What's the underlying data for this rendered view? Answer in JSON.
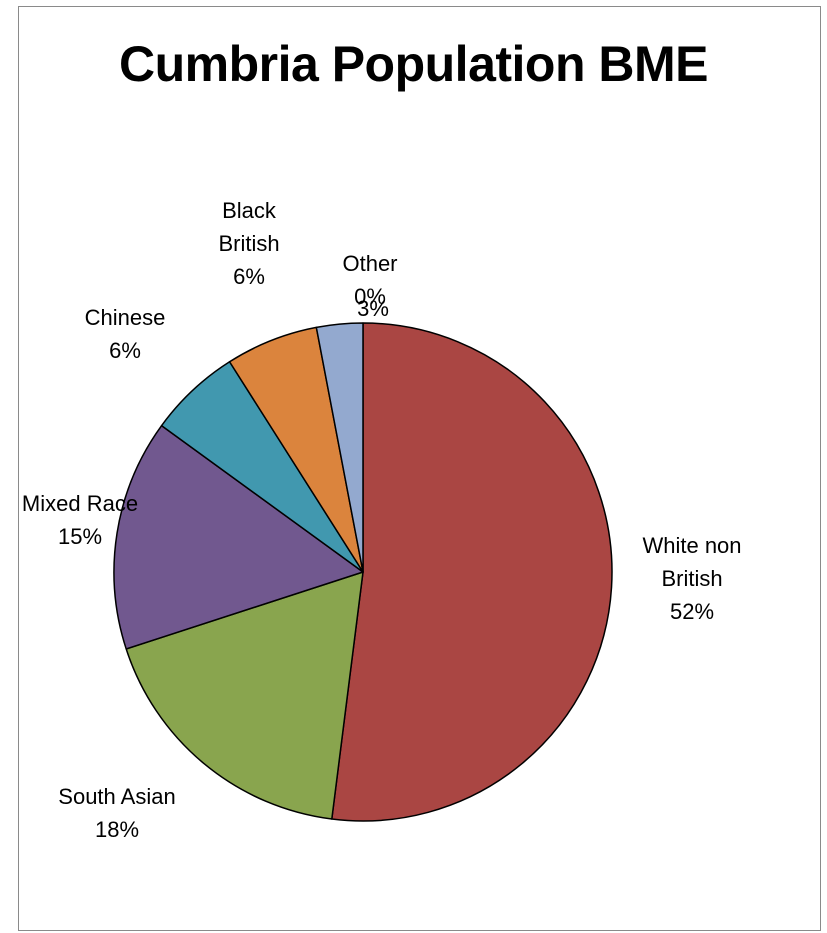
{
  "chart_data": {
    "type": "pie",
    "title": "Cumbria Population BME",
    "slices": [
      {
        "label_lines": [
          "White non",
          "British",
          "52%"
        ],
        "value": 52,
        "color": "#AA4643"
      },
      {
        "label_lines": [
          "South Asian",
          "18%"
        ],
        "value": 18,
        "color": "#89A54E"
      },
      {
        "label_lines": [
          "Mixed Race",
          "15%"
        ],
        "value": 15,
        "color": "#71588F"
      },
      {
        "label_lines": [
          "Chinese",
          "6%"
        ],
        "value": 6,
        "color": "#4198AF"
      },
      {
        "label_lines": [
          "Black",
          "British",
          "6%"
        ],
        "value": 6,
        "color": "#DB843D"
      },
      {
        "label_lines": [
          "3%"
        ],
        "value": 3,
        "color": "#93A9CF"
      },
      {
        "label_lines": [
          "Other",
          "0%"
        ],
        "value": 0,
        "color": "#4572A7"
      }
    ]
  }
}
